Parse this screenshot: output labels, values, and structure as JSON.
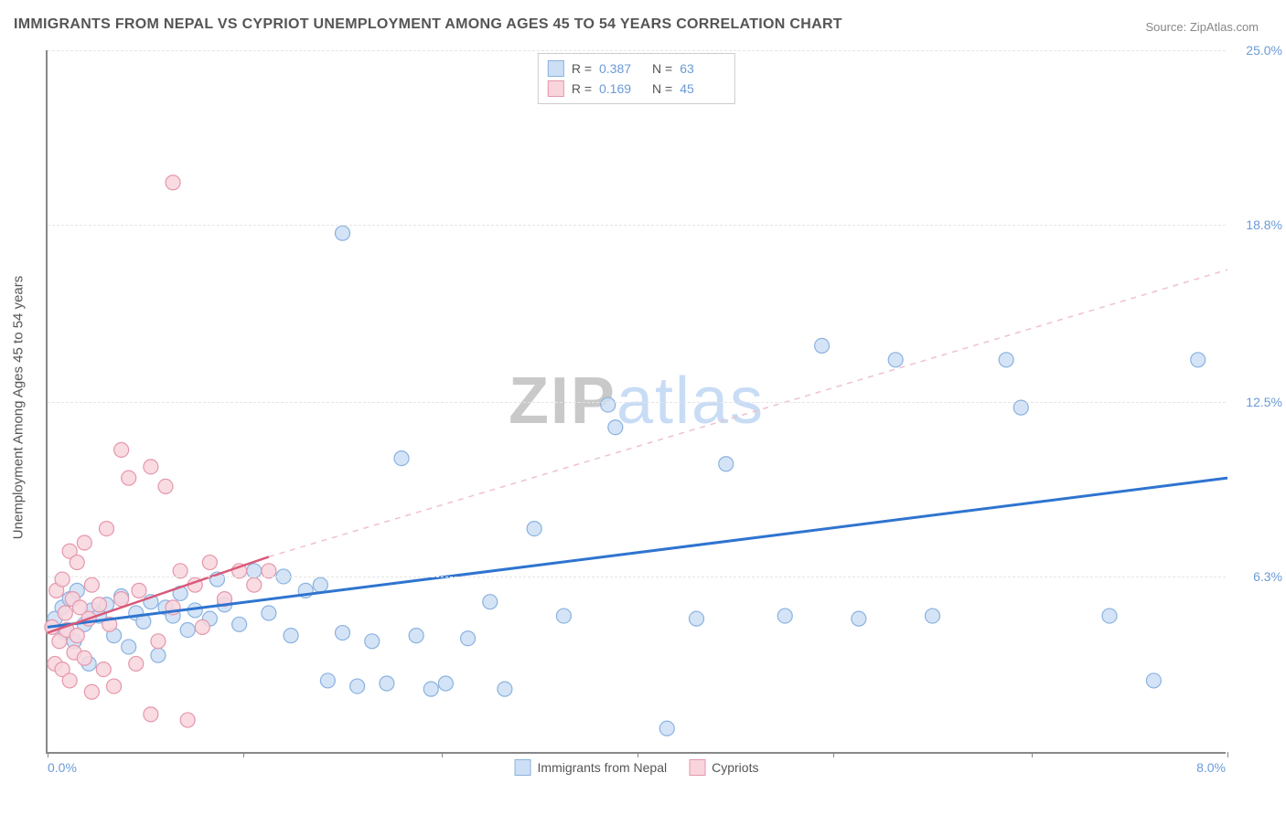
{
  "title": "IMMIGRANTS FROM NEPAL VS CYPRIOT UNEMPLOYMENT AMONG AGES 45 TO 54 YEARS CORRELATION CHART",
  "source": "Source: ZipAtlas.com",
  "y_axis_title": "Unemployment Among Ages 45 to 54 years",
  "watermark": {
    "part1": "ZIP",
    "part2": "atlas"
  },
  "chart": {
    "type": "scatter",
    "background_color": "#ffffff",
    "grid_color": "#e5e5e5",
    "axis_color": "#888888",
    "xlim": [
      0.0,
      8.0
    ],
    "ylim": [
      0.0,
      25.0
    ],
    "x_tick_positions": [
      0,
      1.33,
      2.67,
      4.0,
      5.33,
      6.67,
      8.0
    ],
    "y_ticks": [
      {
        "val": 6.3,
        "label": "6.3%"
      },
      {
        "val": 12.5,
        "label": "12.5%"
      },
      {
        "val": 18.8,
        "label": "18.8%"
      },
      {
        "val": 25.0,
        "label": "25.0%"
      }
    ],
    "x_min_label": "0.0%",
    "x_max_label": "8.0%",
    "marker_radius": 8,
    "marker_stroke_width": 1.2,
    "series": [
      {
        "name": "Immigrants from Nepal",
        "fill": "#cddff5",
        "stroke": "#8ab2e0",
        "R": "0.387",
        "N": "63",
        "trend": {
          "x1": 0.0,
          "y1": 4.5,
          "x2": 8.0,
          "y2": 9.8,
          "color": "#2e74d0",
          "width": 3,
          "dash": "none"
        },
        "trend_ext": null,
        "points": [
          [
            0.05,
            4.8
          ],
          [
            0.1,
            5.2
          ],
          [
            0.12,
            4.3
          ],
          [
            0.15,
            5.5
          ],
          [
            0.18,
            4.0
          ],
          [
            0.2,
            5.8
          ],
          [
            0.25,
            4.6
          ],
          [
            0.28,
            3.2
          ],
          [
            0.3,
            5.1
          ],
          [
            0.35,
            4.9
          ],
          [
            0.4,
            5.3
          ],
          [
            0.45,
            4.2
          ],
          [
            0.5,
            5.6
          ],
          [
            0.55,
            3.8
          ],
          [
            0.6,
            5.0
          ],
          [
            0.65,
            4.7
          ],
          [
            0.7,
            5.4
          ],
          [
            0.75,
            3.5
          ],
          [
            0.8,
            5.2
          ],
          [
            0.85,
            4.9
          ],
          [
            0.9,
            5.7
          ],
          [
            0.95,
            4.4
          ],
          [
            1.0,
            5.1
          ],
          [
            1.1,
            4.8
          ],
          [
            1.15,
            6.2
          ],
          [
            1.2,
            5.3
          ],
          [
            1.3,
            4.6
          ],
          [
            1.4,
            6.5
          ],
          [
            1.5,
            5.0
          ],
          [
            1.6,
            6.3
          ],
          [
            1.65,
            4.2
          ],
          [
            1.75,
            5.8
          ],
          [
            1.85,
            6.0
          ],
          [
            1.9,
            2.6
          ],
          [
            2.0,
            4.3
          ],
          [
            2.0,
            18.5
          ],
          [
            2.1,
            2.4
          ],
          [
            2.2,
            4.0
          ],
          [
            2.3,
            2.5
          ],
          [
            2.4,
            10.5
          ],
          [
            2.5,
            4.2
          ],
          [
            2.6,
            2.3
          ],
          [
            2.7,
            2.5
          ],
          [
            2.85,
            4.1
          ],
          [
            3.0,
            5.4
          ],
          [
            3.1,
            2.3
          ],
          [
            3.3,
            8.0
          ],
          [
            3.5,
            4.9
          ],
          [
            3.8,
            12.4
          ],
          [
            3.85,
            11.6
          ],
          [
            4.2,
            0.9
          ],
          [
            4.4,
            4.8
          ],
          [
            4.6,
            10.3
          ],
          [
            5.0,
            4.9
          ],
          [
            5.25,
            14.5
          ],
          [
            5.5,
            4.8
          ],
          [
            5.75,
            14.0
          ],
          [
            6.0,
            4.9
          ],
          [
            6.5,
            14.0
          ],
          [
            6.6,
            12.3
          ],
          [
            7.2,
            4.9
          ],
          [
            7.5,
            2.6
          ],
          [
            7.8,
            14.0
          ]
        ]
      },
      {
        "name": "Cypriots",
        "fill": "#f8d5dd",
        "stroke": "#e597ac",
        "R": "0.169",
        "N": "45",
        "trend": {
          "x1": 0.0,
          "y1": 4.3,
          "x2": 1.5,
          "y2": 7.0,
          "color": "#d95a7a",
          "width": 2.5,
          "dash": "none"
        },
        "trend_ext": {
          "x1": 1.5,
          "y1": 7.0,
          "x2": 8.0,
          "y2": 17.2,
          "color": "#eec1cc",
          "width": 1.5,
          "dash": "6,6"
        },
        "points": [
          [
            0.03,
            4.5
          ],
          [
            0.05,
            3.2
          ],
          [
            0.06,
            5.8
          ],
          [
            0.08,
            4.0
          ],
          [
            0.1,
            6.2
          ],
          [
            0.1,
            3.0
          ],
          [
            0.12,
            5.0
          ],
          [
            0.13,
            4.4
          ],
          [
            0.15,
            7.2
          ],
          [
            0.15,
            2.6
          ],
          [
            0.17,
            5.5
          ],
          [
            0.18,
            3.6
          ],
          [
            0.2,
            6.8
          ],
          [
            0.2,
            4.2
          ],
          [
            0.22,
            5.2
          ],
          [
            0.25,
            3.4
          ],
          [
            0.25,
            7.5
          ],
          [
            0.28,
            4.8
          ],
          [
            0.3,
            2.2
          ],
          [
            0.3,
            6.0
          ],
          [
            0.35,
            5.3
          ],
          [
            0.38,
            3.0
          ],
          [
            0.4,
            8.0
          ],
          [
            0.42,
            4.6
          ],
          [
            0.45,
            2.4
          ],
          [
            0.5,
            10.8
          ],
          [
            0.5,
            5.5
          ],
          [
            0.55,
            9.8
          ],
          [
            0.6,
            3.2
          ],
          [
            0.62,
            5.8
          ],
          [
            0.7,
            10.2
          ],
          [
            0.7,
            1.4
          ],
          [
            0.75,
            4.0
          ],
          [
            0.8,
            9.5
          ],
          [
            0.85,
            20.3
          ],
          [
            0.85,
            5.2
          ],
          [
            0.9,
            6.5
          ],
          [
            0.95,
            1.2
          ],
          [
            1.0,
            6.0
          ],
          [
            1.05,
            4.5
          ],
          [
            1.1,
            6.8
          ],
          [
            1.2,
            5.5
          ],
          [
            1.3,
            6.5
          ],
          [
            1.4,
            6.0
          ],
          [
            1.5,
            6.5
          ]
        ]
      }
    ],
    "legend_top_labels": {
      "R": "R =",
      "N": "N ="
    },
    "legend_bottom": [
      {
        "label": "Immigrants from Nepal",
        "fill": "#cddff5",
        "stroke": "#8ab2e0"
      },
      {
        "label": "Cypriots",
        "fill": "#f8d5dd",
        "stroke": "#e597ac"
      }
    ]
  }
}
